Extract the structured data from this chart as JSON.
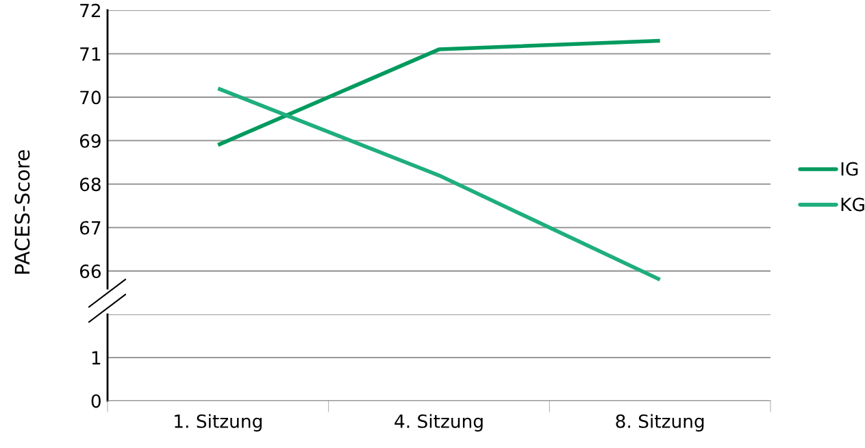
{
  "chart_data": [
    {
      "type": "line",
      "ylabel": "PACES-Score",
      "categories": [
        "1. Sitzung",
        "4. Sitzung",
        "8. Sitzung"
      ],
      "series": [
        {
          "name": "IG",
          "color": "#009a5e",
          "values": [
            68.9,
            71.1,
            71.3
          ]
        },
        {
          "name": "KG",
          "color": "#1fae7e",
          "values": [
            70.2,
            68.2,
            65.8
          ]
        }
      ],
      "ylim": [
        65.6,
        72
      ],
      "yticks": [
        66,
        67,
        68,
        69,
        70,
        71,
        72
      ],
      "tick_labels": "y",
      "grid": "y",
      "legend": "right",
      "marker": "none",
      "line_style": "solid"
    },
    {
      "type": "line",
      "values": [
        null,
        null,
        null
      ],
      "ylim": [
        0,
        2
      ],
      "yticks": [
        0,
        1,
        {
          "value": 2,
          "label": null
        }
      ],
      "grid": "y"
    }
  ]
}
